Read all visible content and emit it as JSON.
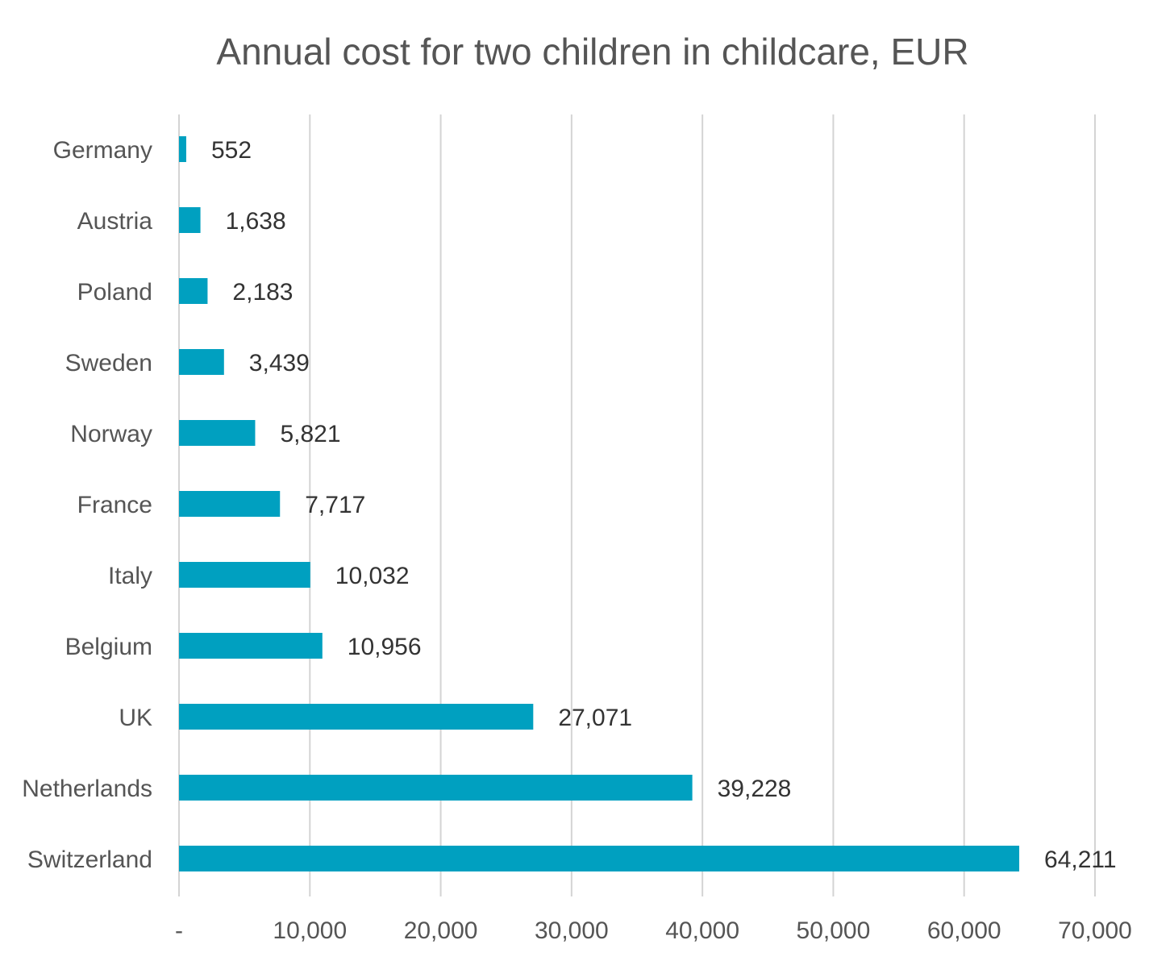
{
  "chart_data": {
    "type": "bar",
    "orientation": "horizontal",
    "title": "Annual cost for two children in childcare, EUR",
    "xlabel": "",
    "ylabel": "",
    "categories": [
      "Germany",
      "Austria",
      "Poland",
      "Sweden",
      "Norway",
      "France",
      "Italy",
      "Belgium",
      "UK",
      "Netherlands",
      "Switzerland"
    ],
    "values": [
      552,
      1638,
      2183,
      3439,
      5821,
      7717,
      10032,
      10956,
      27071,
      39228,
      64211
    ],
    "value_labels": [
      "552",
      "1,638",
      "2,183",
      "3,439",
      "5,821",
      "7,717",
      "10,032",
      "10,956",
      "27,071",
      "39,228",
      "64,211"
    ],
    "xlim": [
      0,
      70000
    ],
    "x_ticks": [
      0,
      10000,
      20000,
      30000,
      40000,
      50000,
      60000,
      70000
    ],
    "x_tick_labels": [
      "-",
      "10,000",
      "20,000",
      "30,000",
      "40,000",
      "50,000",
      "60,000",
      "70,000"
    ],
    "grid": true,
    "legend": "none",
    "bar_color": "#00a0c0"
  }
}
